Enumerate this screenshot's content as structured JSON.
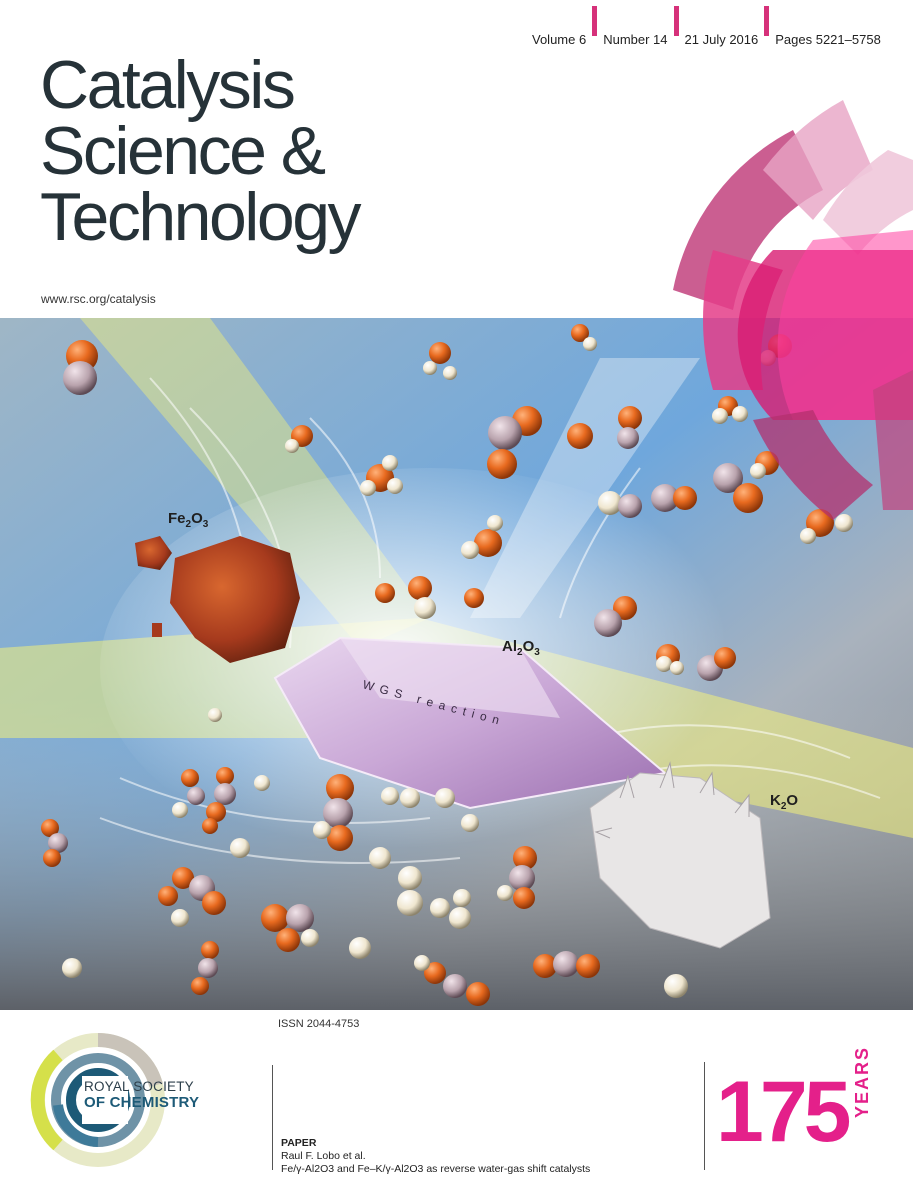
{
  "issue": {
    "volume": "Volume 6",
    "number": "Number 14",
    "date": "21 July 2016",
    "pages": "Pages 5221–5758"
  },
  "journal": {
    "title_line1": "Catalysis",
    "title_line2": "Science &",
    "title_line3": "Technology",
    "url": "www.rsc.org/catalysis"
  },
  "cover_art": {
    "label_fe": "Fe",
    "label_fe_sub1": "2",
    "label_o": "O",
    "label_fe_sub2": "3",
    "label_al": "Al",
    "label_al_sub1": "2",
    "label_al_o": "O",
    "label_al_sub2": "3",
    "label_k": "K",
    "label_k_sub": "2",
    "label_k_o": "O",
    "reaction_text": "WGS reaction",
    "colors": {
      "sky": "#5b9bd5",
      "crystal": "#c9a7d6",
      "oxygen": "#e86a1f",
      "hydrogen": "#efe6cf",
      "carbon": "#b9a3ad",
      "rust": "#a63a1d",
      "beam": "#f2f07a"
    }
  },
  "issn": "ISSN 2044-4753",
  "publisher": {
    "line1": "ROYAL SOCIETY",
    "line2": "OF CHEMISTRY"
  },
  "paper": {
    "heading": "PAPER",
    "authors": "Raul F. Lobo et al.",
    "title": "Fe/γ-Al2O3 and Fe–K/γ-Al2O3 as reverse water-gas shift catalysts"
  },
  "anniversary": {
    "number": "175",
    "word": "YEARS",
    "color": "#e4208a"
  }
}
